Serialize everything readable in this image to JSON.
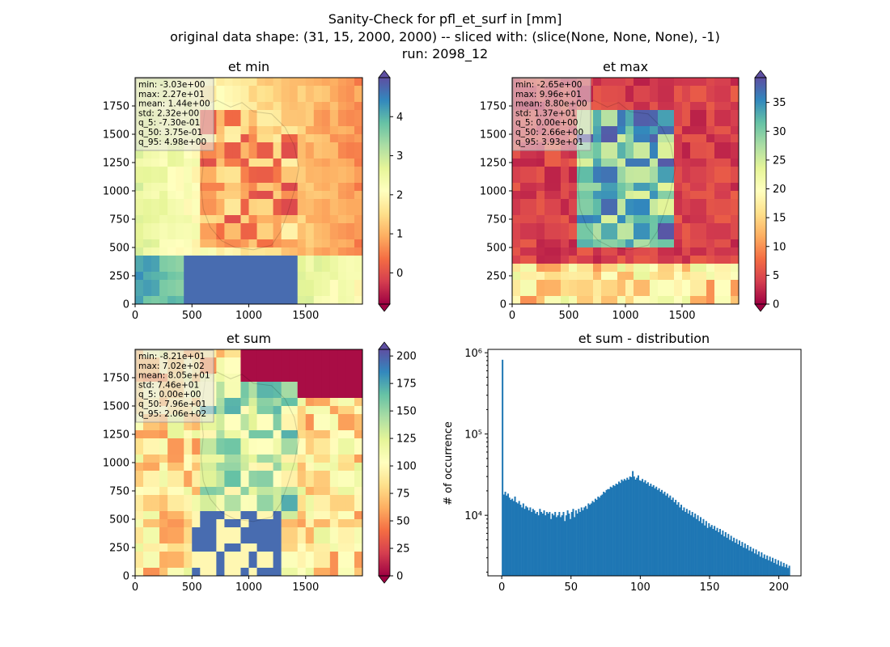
{
  "suptitle": {
    "line1": "Sanity-Check for pfl_et_surf in [mm]",
    "line2": "original data shape: (31, 15, 2000, 2000) -- sliced with: (slice(None, None, None), -1)",
    "line3": "run: 2098_12"
  },
  "colors": {
    "hist_bar": "#1f77b4",
    "colormap": [
      "#9e0142",
      "#d53e4f",
      "#f46d43",
      "#fdae61",
      "#fee08b",
      "#ffffbf",
      "#e6f598",
      "#abdda4",
      "#66c2a5",
      "#3288bd",
      "#5e4fa2"
    ]
  },
  "chart_data": [
    {
      "type": "heatmap",
      "title": "et min",
      "xlim": [
        0,
        2000
      ],
      "ylim": [
        0,
        2000
      ],
      "xticks": [
        0,
        500,
        1000,
        1500
      ],
      "yticks": [
        0,
        250,
        500,
        750,
        1000,
        1250,
        1500,
        1750
      ],
      "colorbar": {
        "vmin": -0.8,
        "vmax": 5.0,
        "ticks": [
          0,
          1,
          2,
          3,
          4
        ],
        "extend": "both"
      },
      "colormap": "Spectral",
      "stats": [
        "min: -3.03e+00",
        "max: 2.27e+01",
        "mean: 1.44e+00",
        "std: 2.32e+00",
        "q_5: -7.30e-01",
        "q_50: 3.75e-01",
        "q_95: 4.98e+00"
      ]
    },
    {
      "type": "heatmap",
      "title": "et max",
      "xlim": [
        0,
        2000
      ],
      "ylim": [
        0,
        2000
      ],
      "xticks": [
        0,
        500,
        1000,
        1500
      ],
      "yticks": [
        0,
        250,
        500,
        750,
        1000,
        1250,
        1500,
        1750
      ],
      "colorbar": {
        "vmin": 0,
        "vmax": 39.3,
        "ticks": [
          0,
          5,
          10,
          15,
          20,
          25,
          30,
          35
        ],
        "extend": "both"
      },
      "colormap": "Spectral",
      "stats": [
        "min: -2.65e+00",
        "max: 9.96e+01",
        "mean: 8.80e+00",
        "std: 1.37e+01",
        "q_5: 0.00e+00",
        "q_50: 2.66e+00",
        "q_95: 3.93e+01"
      ]
    },
    {
      "type": "heatmap",
      "title": "et sum",
      "xlim": [
        0,
        2000
      ],
      "ylim": [
        0,
        2000
      ],
      "xticks": [
        0,
        500,
        1000,
        1500
      ],
      "yticks": [
        0,
        250,
        500,
        750,
        1000,
        1250,
        1500,
        1750
      ],
      "colorbar": {
        "vmin": 0,
        "vmax": 206,
        "ticks": [
          0,
          25,
          50,
          75,
          100,
          125,
          150,
          175,
          200
        ],
        "extend": "both"
      },
      "colormap": "Spectral",
      "stats": [
        "min: -8.21e+01",
        "max: 7.02e+02",
        "mean: 8.05e+01",
        "std: 7.46e+01",
        "q_5: 0.00e+00",
        "q_50: 7.96e+01",
        "q_95: 2.06e+02"
      ]
    },
    {
      "type": "bar",
      "subtype": "histogram",
      "title": "et sum - distribution",
      "ylabel": "# of occurrence",
      "yscale": "log",
      "xlim": [
        -10,
        216
      ],
      "ylim": [
        1800,
        1100000
      ],
      "xticks": [
        0,
        50,
        100,
        150,
        200
      ],
      "yticks": [
        {
          "value": 10000,
          "label": "10⁴"
        },
        {
          "value": 100000,
          "label": "10⁵"
        },
        {
          "value": 1000000,
          "label": "10⁶"
        }
      ],
      "bins": {
        "start": 0,
        "width": 1
      },
      "counts": [
        820000,
        18000,
        19500,
        17500,
        18500,
        16500,
        15500,
        16000,
        15000,
        17000,
        14500,
        14000,
        15000,
        13500,
        12500,
        14000,
        12000,
        13000,
        12500,
        11500,
        12500,
        11000,
        12000,
        11500,
        10500,
        11000,
        10000,
        12000,
        11000,
        10500,
        11500,
        10000,
        11000,
        10500,
        11000,
        9000,
        10500,
        10000,
        11000,
        9500,
        10000,
        11000,
        9500,
        10000,
        11000,
        8500,
        10000,
        11500,
        10500,
        9000,
        11000,
        12000,
        9500,
        11500,
        10500,
        12000,
        11000,
        12500,
        11500,
        12500,
        13000,
        12000,
        14000,
        13500,
        14000,
        15000,
        14500,
        16000,
        15500,
        17000,
        16500,
        17500,
        18000,
        19500,
        19000,
        20500,
        21000,
        21000,
        22500,
        22000,
        23500,
        23000,
        24500,
        24000,
        26000,
        25000,
        27500,
        26500,
        28000,
        27000,
        29000,
        27500,
        30000,
        29500,
        35000,
        30000,
        27500,
        29000,
        31000,
        27000,
        26500,
        28000,
        25500,
        27000,
        24500,
        25500,
        23000,
        24500,
        22500,
        23500,
        21500,
        22500,
        20500,
        21500,
        19500,
        20500,
        18500,
        19500,
        17500,
        18500,
        16500,
        17500,
        15500,
        16500,
        14500,
        15500,
        13500,
        14500,
        12500,
        13500,
        11500,
        12500,
        11000,
        12000,
        10500,
        11500,
        10000,
        11000,
        9500,
        10500,
        9000,
        10000,
        8500,
        9500,
        8000,
        9000,
        7500,
        8500,
        7000,
        8000,
        7200,
        7600,
        6800,
        7400,
        6500,
        7000,
        6200,
        6800,
        5800,
        6500,
        5500,
        6200,
        5300,
        5900,
        5000,
        5600,
        4800,
        5300,
        4600,
        5100,
        4400,
        4900,
        4200,
        4700,
        4000,
        4500,
        3900,
        4300,
        3700,
        4100,
        3600,
        3900,
        3400,
        3800,
        3300,
        3600,
        3100,
        3500,
        3000,
        3300,
        2900,
        3200,
        2800,
        3100,
        2700,
        3000,
        2600,
        2900,
        2500,
        2800,
        2400,
        2700,
        2350,
        2600,
        2300,
        2500,
        2250,
        2400
      ]
    }
  ]
}
